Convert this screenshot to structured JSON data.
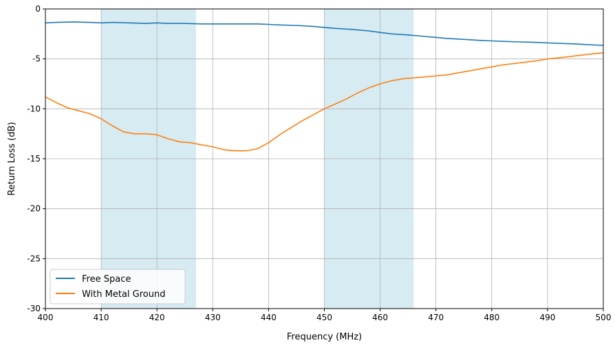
{
  "chart_data": {
    "type": "line",
    "xlabel": "Frequency (MHz)",
    "ylabel": "Return Loss (dB)",
    "xlim": [
      400,
      500
    ],
    "ylim": [
      -30,
      0
    ],
    "xticks": [
      400,
      410,
      420,
      430,
      440,
      450,
      460,
      470,
      480,
      490,
      500
    ],
    "yticks": [
      0,
      -5,
      -10,
      -15,
      -20,
      -25,
      -30
    ],
    "grid": true,
    "legend_position": "lower-left",
    "shaded_bands": [
      {
        "x_start": 410,
        "x_end": 427,
        "color": "#add8e6"
      },
      {
        "x_start": 450,
        "x_end": 466,
        "color": "#add8e6"
      }
    ],
    "series": [
      {
        "name": "Free Space",
        "color": "#1f77b4",
        "x": [
          400,
          402,
          405,
          408,
          410,
          412,
          415,
          418,
          420,
          422,
          425,
          428,
          430,
          432,
          435,
          438,
          440,
          442,
          445,
          448,
          450,
          452,
          455,
          458,
          460,
          462,
          465,
          468,
          470,
          472,
          475,
          478,
          480,
          482,
          485,
          488,
          490,
          492,
          495,
          498,
          500
        ],
        "y": [
          -1.4,
          -1.35,
          -1.3,
          -1.35,
          -1.4,
          -1.35,
          -1.4,
          -1.45,
          -1.4,
          -1.45,
          -1.45,
          -1.5,
          -1.5,
          -1.5,
          -1.5,
          -1.5,
          -1.55,
          -1.6,
          -1.65,
          -1.75,
          -1.85,
          -1.95,
          -2.05,
          -2.2,
          -2.35,
          -2.5,
          -2.6,
          -2.75,
          -2.85,
          -2.95,
          -3.05,
          -3.15,
          -3.2,
          -3.25,
          -3.3,
          -3.35,
          -3.4,
          -3.45,
          -3.5,
          -3.6,
          -3.65
        ]
      },
      {
        "name": "With Metal Ground",
        "color": "#ff7f0e",
        "x": [
          400,
          402,
          404,
          406,
          408,
          410,
          412,
          414,
          416,
          418,
          420,
          422,
          424,
          426,
          428,
          430,
          432,
          434,
          436,
          438,
          440,
          442,
          444,
          446,
          448,
          450,
          452,
          454,
          456,
          458,
          460,
          462,
          464,
          466,
          468,
          470,
          472,
          475,
          478,
          480,
          482,
          485,
          488,
          490,
          492,
          495,
          498,
          500
        ],
        "y": [
          -8.8,
          -9.4,
          -9.9,
          -10.2,
          -10.5,
          -11.0,
          -11.7,
          -12.3,
          -12.5,
          -12.5,
          -12.6,
          -13.0,
          -13.3,
          -13.4,
          -13.6,
          -13.8,
          -14.1,
          -14.2,
          -14.2,
          -14.0,
          -13.4,
          -12.6,
          -11.9,
          -11.2,
          -10.6,
          -10.0,
          -9.5,
          -9.0,
          -8.4,
          -7.9,
          -7.5,
          -7.2,
          -7.0,
          -6.9,
          -6.8,
          -6.7,
          -6.6,
          -6.3,
          -6.0,
          -5.8,
          -5.6,
          -5.4,
          -5.2,
          -5.0,
          -4.9,
          -4.7,
          -4.5,
          -4.4
        ]
      }
    ]
  }
}
